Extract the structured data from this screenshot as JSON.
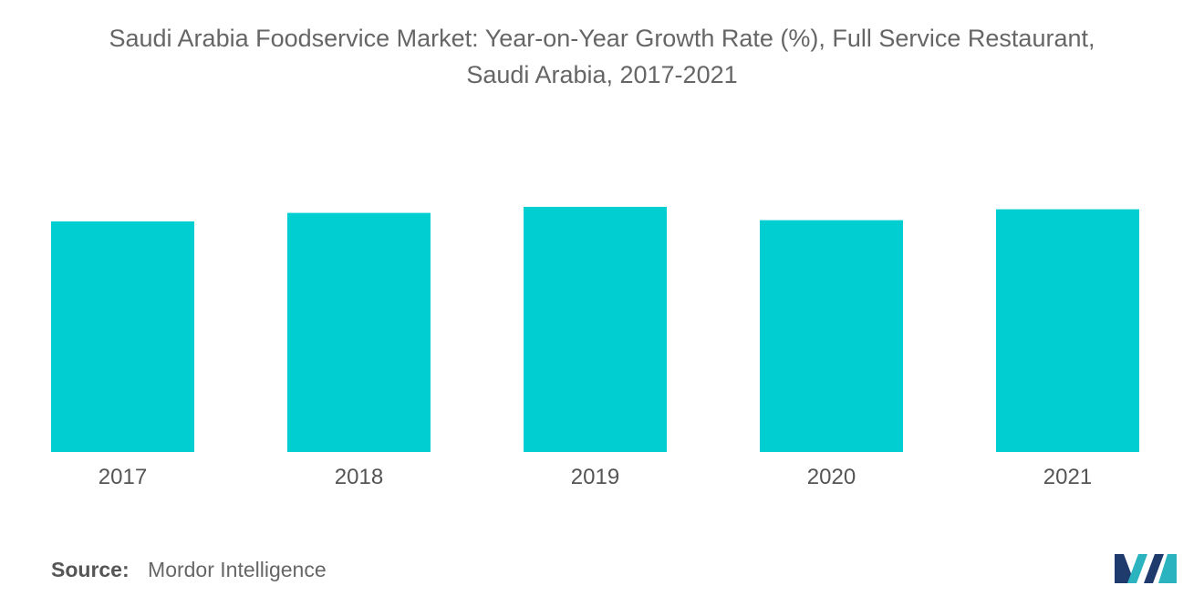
{
  "title_line1": "Saudi Arabia Foodservice Market: Year-on-Year Growth Rate (%), Full Service Restaurant,",
  "title_line2": "Saudi Arabia, 2017-2021",
  "source_label": "Source:",
  "source_value": "Mordor Intelligence",
  "colors": {
    "bar": "#00CED1",
    "text": "#666666",
    "logo_dark": "#1f3b6e",
    "logo_light": "#2bb3c0"
  },
  "chart_data": {
    "type": "bar",
    "title": "Saudi Arabia Foodservice Market: Year-on-Year Growth Rate (%), Full Service Restaurant, Saudi Arabia, 2017-2021",
    "categories": [
      "2017",
      "2018",
      "2019",
      "2020",
      "2021"
    ],
    "values": [
      0.95,
      0.985,
      1.01,
      0.955,
      1.0
    ],
    "xlabel": "",
    "ylabel": "",
    "ylim": [
      0,
      1.1
    ],
    "grid": false,
    "legend": "none"
  }
}
